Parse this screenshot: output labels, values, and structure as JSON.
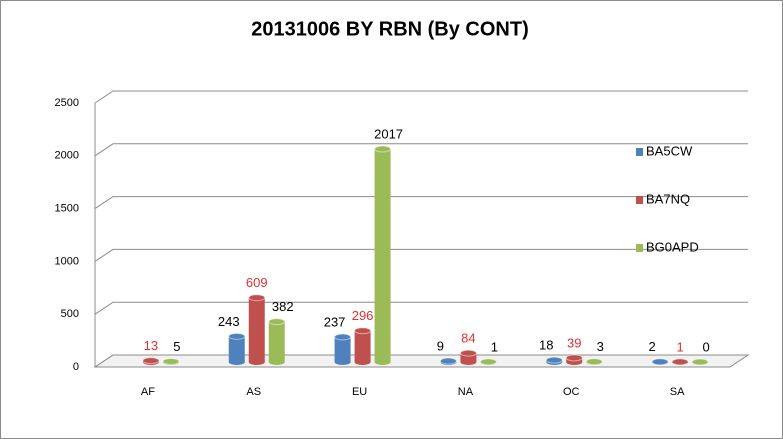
{
  "chart_data": {
    "type": "bar",
    "title": "20131006 BY RBN (By CONT)",
    "categories": [
      "AF",
      "AS",
      "EU",
      "NA",
      "OC",
      "SA"
    ],
    "series": [
      {
        "name": "BA5CW",
        "color": "#4f81bd",
        "label_color": "#000000",
        "values": [
          null,
          243,
          237,
          9,
          18,
          2
        ]
      },
      {
        "name": "BA7NQ",
        "color": "#c0504d",
        "label_color": "#e03030",
        "values": [
          13,
          609,
          296,
          84,
          39,
          1
        ]
      },
      {
        "name": "BG0APD",
        "color": "#9bbb59",
        "label_color": "#000000",
        "values": [
          5,
          382,
          2017,
          1,
          3,
          0
        ]
      }
    ],
    "ylim": [
      0,
      2500
    ],
    "yticks": [
      0,
      500,
      1000,
      1500,
      2000,
      2500
    ],
    "grid": true,
    "legend": "right"
  }
}
